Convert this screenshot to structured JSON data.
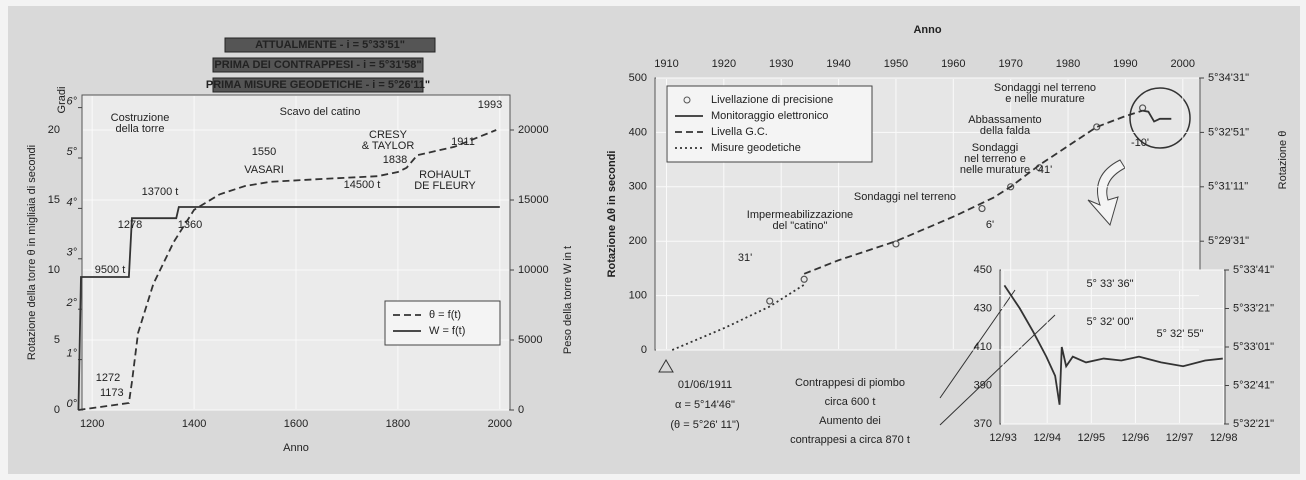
{
  "chart_data": [
    {
      "type": "line",
      "xlabel": "Anno",
      "ylabel": "Rotazione della torre θ in migliaia di secondi",
      "y2label": "Peso della torre W in t",
      "y3label": "Gradi",
      "xlim": [
        1180,
        2020
      ],
      "xticks": [
        1200,
        1400,
        1600,
        1800,
        2000
      ],
      "ylim": [
        0,
        22.5
      ],
      "yticks": [
        0,
        5,
        10,
        15,
        20
      ],
      "y2lim": [
        0,
        22500
      ],
      "y2ticks": [
        0,
        5000,
        10000,
        15000,
        20000
      ],
      "y3ticks": [
        {
          "value": 0,
          "label": "0°"
        },
        {
          "value": 3.6,
          "label": "1°"
        },
        {
          "value": 7.2,
          "label": "2°"
        },
        {
          "value": 10.8,
          "label": "3°"
        },
        {
          "value": 14.4,
          "label": "4°"
        },
        {
          "value": 18,
          "label": "5°"
        },
        {
          "value": 21.6,
          "label": "6°"
        }
      ],
      "grid": true,
      "legend": "lower right",
      "series": [
        {
          "name": "θ = f(t)",
          "color": "#333333",
          "style": "dashed",
          "x": [
            1173,
            1272,
            1278,
            1290,
            1320,
            1360,
            1400,
            1450,
            1500,
            1550,
            1650,
            1760,
            1800,
            1817,
            1838,
            1911,
            1993
          ],
          "values": [
            0,
            0.5,
            2,
            5.5,
            9,
            12,
            14.3,
            15.4,
            16,
            16.3,
            16.5,
            16.7,
            17,
            17.3,
            18.2,
            18.8,
            20
          ]
        },
        {
          "name": "W = f(t)",
          "color": "#333333",
          "style": "solid",
          "axis": "y2",
          "x": [
            1173,
            1178,
            1272,
            1278,
            1365,
            1370,
            2000
          ],
          "values": [
            0,
            9500,
            9500,
            13700,
            13700,
            14500,
            14500
          ]
        }
      ],
      "annotations": [
        [
          "Costruzione",
          "della torre"
        ],
        "Scavo del catino",
        "9500 t",
        "13700 t",
        "14500 t",
        "ATTUALMENTE - i = 5°33'51\"",
        "PRIMA DEI CONTRAPPESI - i = 5°31'58\"",
        "PRIMA MISURE GEODETICHE - i = 5°26'11\"",
        "1550",
        "VASARI",
        [
          "CRESY",
          "& TAYLOR"
        ],
        "1838",
        [
          "ROHAULT",
          "DE FLEURY"
        ],
        "1173",
        "1272",
        "1278",
        "1360",
        "1911",
        "1993"
      ]
    },
    {
      "type": "line",
      "xlabel": "Anno",
      "ylabel": "Rotazione Δθ in secondi",
      "y2label": "Rotazione θ",
      "xlim": [
        1908,
        2003
      ],
      "xticks": [
        1910,
        1920,
        1930,
        1940,
        1950,
        1960,
        1970,
        1980,
        1990,
        2000
      ],
      "ylim": [
        0,
        500
      ],
      "yticks": [
        0,
        100,
        200,
        300,
        400,
        500
      ],
      "y2lim": [
        0,
        500
      ],
      "y2ticks": [
        {
          "value": 500,
          "label": "5°34'31\""
        },
        {
          "value": 400,
          "label": "5°32'51\""
        },
        {
          "value": 300,
          "label": "5°31'11\""
        },
        {
          "value": 200,
          "label": "5°29'31\""
        }
      ],
      "grid": true,
      "legend": "upper left",
      "series": [
        {
          "name": "Livellazione di precisione",
          "color": "#555555",
          "style": "none",
          "marker": "circle",
          "x": [
            1928,
            1934,
            1950,
            1965,
            1970,
            1975,
            1985,
            1993
          ],
          "values": [
            90,
            130,
            195,
            260,
            300,
            335,
            410,
            445
          ]
        },
        {
          "name": "Monitoraggio elettronico",
          "color": "#333333",
          "style": "solid",
          "x": [
            1993,
            1994,
            1995,
            1996,
            1998
          ],
          "values": [
            440,
            438,
            420,
            425,
            425
          ]
        },
        {
          "name": "Livella G.C.",
          "color": "#333333",
          "style": "dashed",
          "x": [
            1934,
            1940,
            1950,
            1960,
            1967,
            1970,
            1975,
            1980,
            1985,
            1990,
            1993
          ],
          "values": [
            140,
            165,
            200,
            245,
            280,
            300,
            340,
            375,
            410,
            430,
            440
          ]
        },
        {
          "name": "Misure geodetiche",
          "color": "#333333",
          "style": "dotted",
          "x": [
            1911,
            1920,
            1928,
            1934
          ],
          "values": [
            0,
            40,
            80,
            120
          ]
        }
      ],
      "annotations": [
        [
          "Impermeabilizzazione",
          "del \"catino\""
        ],
        "Sondaggi nel terreno",
        [
          "Sondaggi",
          "nel terreno e",
          "nelle murature"
        ],
        [
          "Abbassamento",
          "della falda"
        ],
        [
          "Sondaggi nel terreno",
          "e nelle murature"
        ],
        "31'",
        "6'",
        "41'",
        "-10'",
        "01/06/1911",
        "α = 5°14'46\"",
        "(θ = 5°26' 11\")",
        "Contrappesi di piombo",
        "circa 600 t",
        "Aumento dei",
        "contrappesi a circa 870 t"
      ]
    },
    {
      "type": "line",
      "xlim": [
        1993.85,
        1998.95
      ],
      "xticks": [
        {
          "value": 1993.92,
          "label": "12/93"
        },
        {
          "value": 1994.92,
          "label": "12/94"
        },
        {
          "value": 1995.92,
          "label": "12/95"
        },
        {
          "value": 1996.92,
          "label": "12/96"
        },
        {
          "value": 1997.92,
          "label": "12/97"
        },
        {
          "value": 1998.92,
          "label": "12/98"
        }
      ],
      "ylim": [
        370,
        450
      ],
      "yticks": [
        370,
        390,
        410,
        430,
        450
      ],
      "y2lim": [
        370,
        450
      ],
      "y2ticks": [
        {
          "value": 450,
          "label": "5°33'41\""
        },
        {
          "value": 430,
          "label": "5°33'21\""
        },
        {
          "value": 410,
          "label": "5°33'01\""
        },
        {
          "value": 390,
          "label": "5°32'41\""
        },
        {
          "value": 370,
          "label": "5°32'21\""
        }
      ],
      "grid": true,
      "series": [
        {
          "color": "#333333",
          "style": "solid",
          "x": [
            1993.95,
            1994.3,
            1994.6,
            1994.9,
            1995.1,
            1995.2,
            1995.25,
            1995.35,
            1995.5,
            1995.8,
            1996.2,
            1996.6,
            1997.0,
            1997.5,
            1998.0,
            1998.5,
            1998.9
          ],
          "values": [
            442,
            430,
            418,
            405,
            395,
            380,
            410,
            400,
            405,
            402,
            404,
            403,
            405,
            402,
            400,
            403,
            404
          ]
        }
      ],
      "annotations": [
        "5° 33' 36\"",
        "5° 32' 00\"",
        "5° 32' 55\""
      ]
    }
  ]
}
